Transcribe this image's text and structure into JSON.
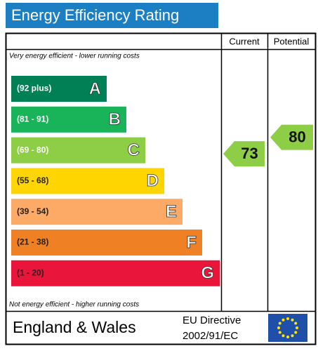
{
  "title": "Energy Efficiency Rating",
  "chart_data": {
    "type": "epc",
    "columns": [
      "Current",
      "Potential"
    ],
    "top_note": "Very energy efficient - lower running costs",
    "bottom_note": "Not energy efficient - higher running costs",
    "bands": [
      {
        "range": "(92 plus)",
        "letter": "A",
        "color": "#008054"
      },
      {
        "range": "(81 - 91)",
        "letter": "B",
        "color": "#19b459"
      },
      {
        "range": "(69 - 80)",
        "letter": "C",
        "color": "#8dce46"
      },
      {
        "range": "(55 - 68)",
        "letter": "D",
        "color": "#ffd500"
      },
      {
        "range": "(39 - 54)",
        "letter": "E",
        "color": "#fcaa65"
      },
      {
        "range": "(21 - 38)",
        "letter": "F",
        "color": "#ef8023"
      },
      {
        "range": "(1 - 20)",
        "letter": "G",
        "color": "#e9153b"
      }
    ],
    "series": [
      {
        "name": "Current",
        "value": 73,
        "color": "#8dce46"
      },
      {
        "name": "Potential",
        "value": 80,
        "color": "#8dce46"
      }
    ]
  },
  "footer": {
    "region": "England & Wales",
    "directive_line1": "EU Directive",
    "directive_line2": "2002/91/EC"
  }
}
